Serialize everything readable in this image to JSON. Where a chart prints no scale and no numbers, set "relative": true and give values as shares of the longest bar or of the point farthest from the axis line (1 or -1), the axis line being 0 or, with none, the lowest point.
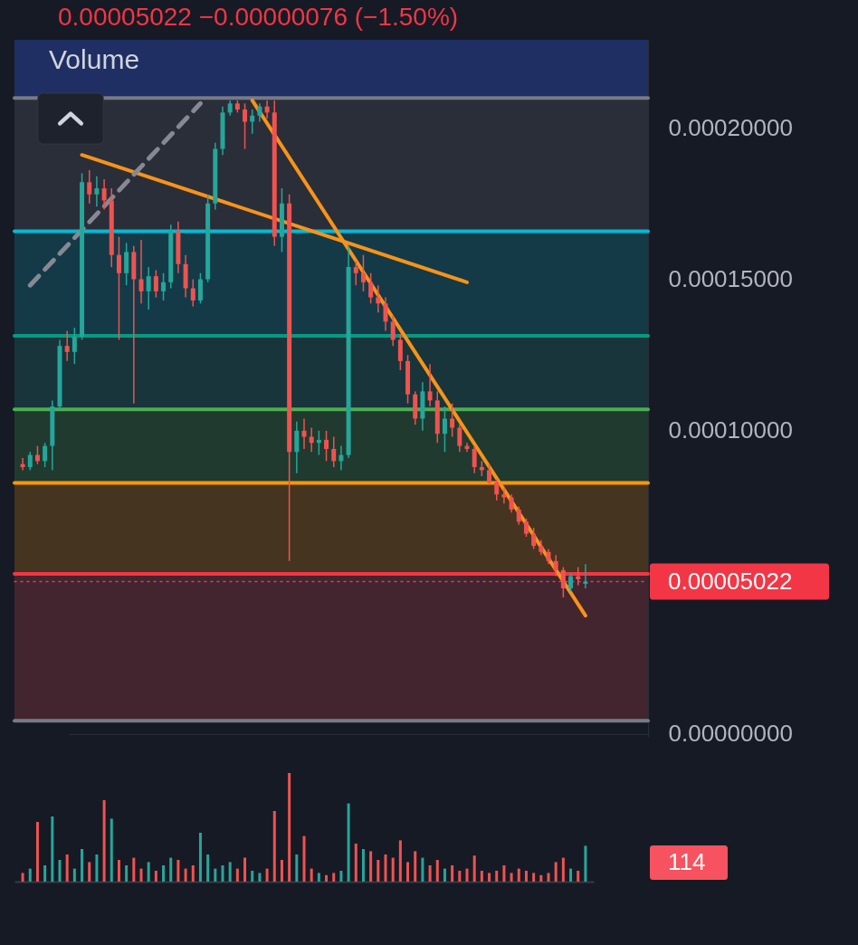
{
  "chart_data": [
    {
      "type": "candlestick",
      "title": "0.00005022 −0.00000076 (−1.50%)",
      "annotations": [
        "Volume"
      ],
      "categories": [
        null,
        null,
        null,
        null,
        null,
        null,
        null,
        null,
        null,
        null,
        null,
        null,
        null,
        null,
        null,
        null,
        null,
        null,
        null,
        null,
        null,
        null,
        null,
        null,
        null,
        null,
        null,
        null,
        null,
        null,
        null,
        null,
        null,
        null,
        null,
        null,
        null,
        null,
        null,
        null,
        null,
        null,
        null,
        null,
        null,
        null,
        null,
        null,
        null,
        null,
        null,
        null,
        null,
        null,
        null,
        null,
        null,
        null,
        null,
        null,
        null,
        null,
        null,
        null,
        null,
        null,
        null,
        null,
        null,
        null,
        null,
        null,
        null,
        null,
        null,
        null,
        null
      ],
      "ohlc": [
        [
          8.9e-05,
          9.1e-05,
          8.7e-05,
          8.8e-05
        ],
        [
          8.8e-05,
          9.3e-05,
          8.7e-05,
          9.2e-05
        ],
        [
          9.2e-05,
          9.5e-05,
          8.9e-05,
          9e-05
        ],
        [
          9e-05,
          9.6e-05,
          8.8e-05,
          9.5e-05
        ],
        [
          9.5e-05,
          0.00011,
          8.7e-05,
          0.000108
        ],
        [
          0.000108,
          0.00013,
          0.000107,
          0.000128
        ],
        [
          0.000128,
          0.000133,
          0.000123,
          0.000126
        ],
        [
          0.000126,
          0.000134,
          0.000122,
          0.000131
        ],
        [
          0.000131,
          0.000185,
          0.00013,
          0.000182
        ],
        [
          0.000182,
          0.000186,
          0.000175,
          0.000178
        ],
        [
          0.000178,
          0.000184,
          0.000174,
          0.00018
        ],
        [
          0.00018,
          0.000183,
          0.000173,
          0.000176
        ],
        [
          0.000176,
          0.00018,
          0.000154,
          0.000158
        ],
        [
          0.000158,
          0.000164,
          0.00013,
          0.000152
        ],
        [
          0.000152,
          0.000162,
          0.000148,
          0.000159
        ],
        [
          0.000159,
          0.000161,
          0.000109,
          0.00015
        ],
        [
          0.00015,
          0.000163,
          0.000142,
          0.000146
        ],
        [
          0.000146,
          0.000154,
          0.00014,
          0.000151
        ],
        [
          0.000151,
          0.000153,
          0.000144,
          0.000146
        ],
        [
          0.000146,
          0.000152,
          0.000143,
          0.000149
        ],
        [
          0.000149,
          0.000168,
          0.000147,
          0.000166
        ],
        [
          0.000166,
          0.000169,
          0.000152,
          0.000155
        ],
        [
          0.000155,
          0.000158,
          0.000144,
          0.000147
        ],
        [
          0.000147,
          0.00015,
          0.000141,
          0.000143
        ],
        [
          0.000143,
          0.000152,
          0.000142,
          0.00015
        ],
        [
          0.00015,
          0.000178,
          0.000149,
          0.000175
        ],
        [
          0.000175,
          0.000195,
          0.000173,
          0.000193
        ],
        [
          0.000193,
          0.000207,
          0.000191,
          0.000205
        ],
        [
          0.000205,
          0.000209,
          0.000204,
          0.000208
        ],
        [
          0.000208,
          0.000209,
          0.000205,
          0.000206
        ],
        [
          0.000206,
          0.000208,
          0.000193,
          0.000202
        ],
        [
          0.000202,
          0.000206,
          0.000198,
          0.000204
        ],
        [
          0.000204,
          0.000208,
          0.000202,
          0.000207
        ],
        [
          0.000207,
          0.000209,
          0.000203,
          0.000205
        ],
        [
          0.000205,
          0.000209,
          0.000161,
          0.000164
        ],
        [
          0.000164,
          0.00018,
          0.000159,
          0.000175
        ],
        [
          0.000175,
          0.000178,
          5.7e-05,
          9.3e-05
        ],
        [
          9.3e-05,
          0.000103,
          8.6e-05,
          0.0001
        ],
        [
          0.0001,
          0.000104,
          9.4e-05,
          9.8e-05
        ],
        [
          9.8e-05,
          0.000101,
          9.3e-05,
          9.6e-05
        ],
        [
          9.6e-05,
          0.0001,
          9.2e-05,
          9.7e-05
        ],
        [
          9.7e-05,
          0.0001,
          9e-05,
          9.4e-05
        ],
        [
          9.4e-05,
          9.8e-05,
          8.8e-05,
          9e-05
        ],
        [
          9e-05,
          9.5e-05,
          8.7e-05,
          9.2e-05
        ],
        [
          9.2e-05,
          0.000161,
          9.1e-05,
          0.000154
        ],
        [
          0.000154,
          0.000156,
          0.000148,
          0.000152
        ],
        [
          0.000152,
          0.000158,
          0.000146,
          0.000149
        ],
        [
          0.000149,
          0.000152,
          0.000142,
          0.000144
        ],
        [
          0.000144,
          0.000148,
          0.000139,
          0.000142
        ],
        [
          0.000142,
          0.000144,
          0.000133,
          0.000136
        ],
        [
          0.000136,
          0.000138,
          0.000128,
          0.00013
        ],
        [
          0.00013,
          0.000132,
          0.00012,
          0.000123
        ],
        [
          0.000123,
          0.000125,
          0.000109,
          0.000112
        ],
        [
          0.000112,
          0.000113,
          0.000102,
          0.000104
        ],
        [
          0.000104,
          0.000116,
          0.0001,
          0.000113
        ],
        [
          0.000113,
          0.000122,
          0.000108,
          0.00011
        ],
        [
          0.00011,
          0.000113,
          9.6e-05,
          9.9e-05
        ],
        [
          9.9e-05,
          0.000108,
          9.3e-05,
          0.000104
        ],
        [
          0.000104,
          0.000109,
          9.8e-05,
          0.000101
        ],
        [
          0.000101,
          0.000102,
          9.3e-05,
          9.5e-05
        ],
        [
          9.5e-05,
          9.6e-05,
          9.3e-05,
          9.4e-05
        ],
        [
          9.4e-05,
          9.5e-05,
          8.6e-05,
          8.8e-05
        ],
        [
          8.8e-05,
          9e-05,
          8.5e-05,
          8.7e-05
        ],
        [
          8.7e-05,
          8.9e-05,
          8.2e-05,
          8.3e-05
        ],
        [
          8.3e-05,
          8.4e-05,
          7.7e-05,
          7.9e-05
        ],
        [
          7.9e-05,
          8.1e-05,
          7.6e-05,
          7.8e-05
        ],
        [
          7.8e-05,
          7.9e-05,
          7.3e-05,
          7.4e-05
        ],
        [
          7.4e-05,
          7.5e-05,
          6.9e-05,
          7e-05
        ],
        [
          7e-05,
          7.1e-05,
          6.5e-05,
          6.6e-05
        ],
        [
          6.6e-05,
          6.8e-05,
          6.1e-05,
          6.2e-05
        ],
        [
          6.2e-05,
          6.4e-05,
          5.9e-05,
          6e-05
        ],
        [
          6e-05,
          6.1e-05,
          5.6e-05,
          5.7e-05
        ],
        [
          5.7e-05,
          5.9e-05,
          5.2e-05,
          5.4e-05
        ],
        [
          5.4e-05,
          5.5e-05,
          4.5e-05,
          4.8e-05
        ],
        [
          4.8e-05,
          5.3e-05,
          4.7e-05,
          5.2e-05
        ],
        [
          5.2e-05,
          5.5e-05,
          4.9e-05,
          5.098e-05
        ],
        [
          4.95e-05,
          5.6e-05,
          4.8e-05,
          5.022e-05
        ]
      ],
      "colors": [
        "#ef5350",
        "#26a69a",
        "#ef5350",
        "#26a69a",
        "#26a69a",
        "#26a69a",
        "#ef5350",
        "#26a69a",
        "#26a69a",
        "#ef5350",
        "#26a69a",
        "#ef5350",
        "#ef5350",
        "#ef5350",
        "#26a69a",
        "#ef5350",
        "#ef5350",
        "#26a69a",
        "#ef5350",
        "#26a69a",
        "#26a69a",
        "#ef5350",
        "#ef5350",
        "#ef5350",
        "#26a69a",
        "#26a69a",
        "#26a69a",
        "#26a69a",
        "#26a69a",
        "#ef5350",
        "#ef5350",
        "#26a69a",
        "#26a69a",
        "#ef5350",
        "#ef5350",
        "#26a69a",
        "#ef5350",
        "#26a69a",
        "#ef5350",
        "#ef5350",
        "#26a69a",
        "#ef5350",
        "#ef5350",
        "#26a69a",
        "#26a69a",
        "#ef5350",
        "#ef5350",
        "#ef5350",
        "#ef5350",
        "#ef5350",
        "#ef5350",
        "#ef5350",
        "#ef5350",
        "#ef5350",
        "#26a69a",
        "#ef5350",
        "#ef5350",
        "#26a69a",
        "#ef5350",
        "#ef5350",
        "#ef5350",
        "#ef5350",
        "#ef5350",
        "#ef5350",
        "#ef5350",
        "#ef5350",
        "#ef5350",
        "#ef5350",
        "#ef5350",
        "#ef5350",
        "#ef5350",
        "#ef5350",
        "#ef5350",
        "#ef5350",
        "#26a69a",
        "#ef5350",
        "#26a69a"
      ],
      "ylim": [
        -1e-06,
        0.000229
      ],
      "yticks": [
        {
          "value": 0,
          "label": "0.00000000"
        },
        {
          "value": 0.0001,
          "label": "0.00010000"
        },
        {
          "value": 0.00015,
          "label": "0.00015000"
        },
        {
          "value": 0.0002,
          "label": "0.00020000"
        }
      ],
      "tick_labels": "y",
      "grid": "y",
      "series": [
        {
          "type": "line",
          "values": [
            null,
            null,
            null,
            null,
            null,
            null,
            null,
            null,
            0.000191,
            null,
            null,
            null,
            null,
            null,
            null,
            null,
            null,
            null,
            null,
            null,
            null,
            null,
            null,
            null,
            null,
            null,
            null,
            null,
            null,
            null,
            null,
            null,
            null,
            null,
            null,
            null,
            null,
            null,
            null,
            null,
            null,
            null,
            null,
            null,
            null,
            null,
            null,
            null,
            null,
            null,
            null,
            null,
            null,
            null,
            null,
            null,
            null,
            null,
            null,
            null,
            0.000149,
            null,
            null,
            null,
            null,
            null,
            null,
            null,
            null,
            null,
            null,
            null,
            null,
            null,
            null,
            null,
            null
          ],
          "color": "#f7931a",
          "line_style": "solid"
        },
        {
          "type": "line",
          "values": [
            null,
            null,
            null,
            null,
            null,
            null,
            null,
            null,
            null,
            null,
            null,
            null,
            null,
            null,
            null,
            null,
            null,
            null,
            null,
            null,
            null,
            null,
            null,
            null,
            null,
            null,
            null,
            null,
            null,
            null,
            null,
            0.000209,
            null,
            null,
            null,
            null,
            null,
            null,
            null,
            null,
            null,
            null,
            null,
            null,
            null,
            null,
            null,
            null,
            null,
            null,
            null,
            null,
            null,
            null,
            null,
            null,
            null,
            null,
            null,
            null,
            null,
            null,
            null,
            null,
            null,
            null,
            null,
            null,
            null,
            null,
            null,
            null,
            null,
            null,
            null,
            null,
            3.9e-05
          ],
          "color": "#f7931a",
          "line_style": "solid"
        },
        {
          "type": "line",
          "values": [
            null,
            0.000148,
            null,
            null,
            null,
            null,
            null,
            null,
            null,
            null,
            null,
            null,
            null,
            null,
            null,
            null,
            null,
            null,
            null,
            null,
            null,
            null,
            null,
            null,
            0.000208,
            null,
            null,
            null,
            null,
            null,
            null,
            null,
            null,
            null,
            null,
            null,
            null,
            null,
            null,
            null,
            null,
            null,
            null,
            null,
            null,
            null,
            null,
            null,
            null,
            null,
            null,
            null,
            null,
            null,
            null,
            null,
            null,
            null,
            null,
            null,
            null,
            null,
            null,
            null,
            null,
            null,
            null,
            null,
            null,
            null,
            null,
            null,
            null,
            null,
            null,
            null,
            null
          ],
          "color": "#868993",
          "line_style": "dashed"
        }
      ],
      "bands": [
        {
          "axis": "y",
          "from": 4.3e-06,
          "to": 5.28e-05,
          "color": "#432530"
        },
        {
          "axis": "y",
          "from": 5.28e-05,
          "to": 8.28e-05,
          "color": "#45341f"
        },
        {
          "axis": "y",
          "from": 8.28e-05,
          "to": 0.00010705,
          "color": "#203a2f"
        },
        {
          "axis": "y",
          "from": 0.00010705,
          "to": 0.0001313,
          "color": "#17353a"
        },
        {
          "axis": "y",
          "from": 0.0001313,
          "to": 0.00016582,
          "color": "#143a48"
        },
        {
          "axis": "y",
          "from": 0.00016582,
          "to": 0.0002098,
          "color": "#2a2e39"
        },
        {
          "axis": "y",
          "from": 0.0002098,
          "to": 0.000229,
          "color": "#1f2f63"
        }
      ],
      "ref_lines": [
        {
          "axis": "y",
          "value": 4.3e-06,
          "color": "#787b86",
          "line_style": "solid"
        },
        {
          "axis": "y",
          "value": 5.28e-05,
          "color": "#f23645",
          "line_style": "solid"
        },
        {
          "axis": "y",
          "value": 8.28e-05,
          "color": "#ff9800",
          "line_style": "solid"
        },
        {
          "axis": "y",
          "value": 0.00010705,
          "color": "#4caf50",
          "line_style": "solid"
        },
        {
          "axis": "y",
          "value": 0.0001313,
          "color": "#089981",
          "line_style": "solid"
        },
        {
          "axis": "y",
          "value": 0.00016582,
          "color": "#00bcd4",
          "line_style": "solid"
        },
        {
          "axis": "y",
          "value": 0.0002098,
          "color": "#787b86",
          "line_style": "solid"
        },
        {
          "axis": "y",
          "value": 5.022e-05,
          "label": "0.00005022",
          "color": "#f23645",
          "line_style": "dotted"
        }
      ]
    },
    {
      "type": "bar",
      "relative": true,
      "tick_labels": false,
      "annotations": [
        "114"
      ],
      "categories": [
        null,
        null,
        null,
        null,
        null,
        null,
        null,
        null,
        null,
        null,
        null,
        null,
        null,
        null,
        null,
        null,
        null,
        null,
        null,
        null,
        null,
        null,
        null,
        null,
        null,
        null,
        null,
        null,
        null,
        null,
        null,
        null,
        null,
        null,
        null,
        null,
        null,
        null,
        null,
        null,
        null,
        null,
        null,
        null,
        null,
        null,
        null,
        null,
        null,
        null,
        null,
        null,
        null,
        null,
        null,
        null,
        null,
        null,
        null,
        null,
        null,
        null,
        null,
        null,
        null,
        null,
        null,
        null,
        null,
        null,
        null,
        null,
        null,
        null,
        null,
        null,
        null
      ],
      "values": [
        0.08,
        0.12,
        0.55,
        0.15,
        0.6,
        0.2,
        0.25,
        0.12,
        0.3,
        0.18,
        0.25,
        0.75,
        0.58,
        0.2,
        0.15,
        0.22,
        0.12,
        0.18,
        0.1,
        0.15,
        0.22,
        0.2,
        0.12,
        0.15,
        0.45,
        0.25,
        0.12,
        0.15,
        0.18,
        0.12,
        0.22,
        0.1,
        0.08,
        0.12,
        0.65,
        0.2,
        1.0,
        0.25,
        0.42,
        0.12,
        0.08,
        0.06,
        0.08,
        0.1,
        0.72,
        0.35,
        0.3,
        0.28,
        0.2,
        0.25,
        0.22,
        0.38,
        0.18,
        0.28,
        0.22,
        0.15,
        0.2,
        0.12,
        0.15,
        0.1,
        0.12,
        0.24,
        0.1,
        0.08,
        0.1,
        0.15,
        0.08,
        0.12,
        0.1,
        0.08,
        0.06,
        0.08,
        0.18,
        0.22,
        0.12,
        0.1,
        0.33
      ],
      "colors": [
        "#ef5350",
        "#26a69a",
        "#ef5350",
        "#26a69a",
        "#26a69a",
        "#26a69a",
        "#ef5350",
        "#26a69a",
        "#26a69a",
        "#ef5350",
        "#26a69a",
        "#ef5350",
        "#26a69a",
        "#ef5350",
        "#26a69a",
        "#ef5350",
        "#ef5350",
        "#26a69a",
        "#ef5350",
        "#26a69a",
        "#26a69a",
        "#ef5350",
        "#ef5350",
        "#ef5350",
        "#26a69a",
        "#26a69a",
        "#26a69a",
        "#26a69a",
        "#26a69a",
        "#ef5350",
        "#ef5350",
        "#26a69a",
        "#26a69a",
        "#ef5350",
        "#ef5350",
        "#ef5350",
        "#ef5350",
        "#26a69a",
        "#ef5350",
        "#ef5350",
        "#26a69a",
        "#ef5350",
        "#ef5350",
        "#26a69a",
        "#26a69a",
        "#ef5350",
        "#26a69a",
        "#ef5350",
        "#ef5350",
        "#ef5350",
        "#ef5350",
        "#ef5350",
        "#ef5350",
        "#ef5350",
        "#26a69a",
        "#ef5350",
        "#ef5350",
        "#26a69a",
        "#ef5350",
        "#ef5350",
        "#ef5350",
        "#ef5350",
        "#ef5350",
        "#ef5350",
        "#ef5350",
        "#ef5350",
        "#ef5350",
        "#ef5350",
        "#ef5350",
        "#ef5350",
        "#ef5350",
        "#ef5350",
        "#ef5350",
        "#ef5350",
        "#26a69a",
        "#ef5350",
        "#26a69a"
      ]
    }
  ]
}
